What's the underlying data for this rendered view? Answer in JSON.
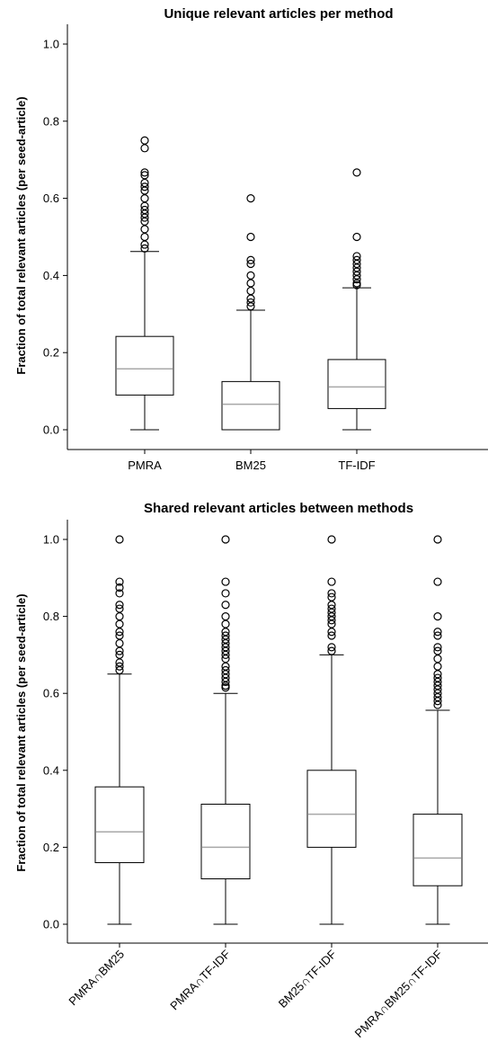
{
  "chart_data": [
    {
      "type": "box",
      "title": "Unique relevant articles per method",
      "ylabel": "Fraction of total relevant articles (per seed-article)",
      "xlabel": "",
      "ylim": [
        -0.05,
        1.05
      ],
      "yticks": [
        "0.0",
        "0.2",
        "0.4",
        "0.6",
        "0.8",
        "1.0"
      ],
      "grid": false,
      "categories": [
        "PMRA",
        "BM25",
        "TF-IDF"
      ],
      "boxes": [
        {
          "name": "PMRA",
          "whislo": 0.0,
          "q1": 0.09,
          "med": 0.158,
          "q3": 0.242,
          "whishi": 0.462,
          "fliers": [
            0.47,
            0.48,
            0.5,
            0.52,
            0.54,
            0.55,
            0.56,
            0.57,
            0.58,
            0.6,
            0.62,
            0.63,
            0.64,
            0.66,
            0.667,
            0.73,
            0.75
          ]
        },
        {
          "name": "BM25",
          "whislo": 0.0,
          "q1": 0.0,
          "med": 0.066,
          "q3": 0.125,
          "whishi": 0.31,
          "fliers": [
            0.32,
            0.33,
            0.34,
            0.36,
            0.38,
            0.4,
            0.43,
            0.44,
            0.5,
            0.6
          ]
        },
        {
          "name": "TF-IDF",
          "whislo": 0.0,
          "q1": 0.055,
          "med": 0.111,
          "q3": 0.182,
          "whishi": 0.368,
          "fliers": [
            0.375,
            0.38,
            0.39,
            0.4,
            0.41,
            0.42,
            0.43,
            0.44,
            0.45,
            0.5,
            0.667
          ]
        }
      ]
    },
    {
      "type": "box",
      "title": "Shared relevant articles between methods",
      "ylabel": "Fraction of total relevant articles (per seed-article)",
      "xlabel": "",
      "ylim": [
        -0.05,
        1.05
      ],
      "yticks": [
        "0.0",
        "0.2",
        "0.4",
        "0.6",
        "0.8",
        "1.0"
      ],
      "grid": false,
      "categories": [
        "PMRA∩BM25",
        "PMRA∩TF-IDF",
        "BM25∩TF-IDF",
        "PMRA∩BM25∩TF-IDF"
      ],
      "boxes": [
        {
          "name": "PMRA∩BM25",
          "whislo": 0.0,
          "q1": 0.16,
          "med": 0.24,
          "q3": 0.357,
          "whishi": 0.65,
          "fliers": [
            0.66,
            0.67,
            0.68,
            0.7,
            0.71,
            0.73,
            0.75,
            0.76,
            0.78,
            0.8,
            0.82,
            0.83,
            0.86,
            0.875,
            0.89,
            1.0
          ]
        },
        {
          "name": "PMRA∩TF-IDF",
          "whislo": 0.0,
          "q1": 0.118,
          "med": 0.2,
          "q3": 0.312,
          "whishi": 0.6,
          "fliers": [
            0.615,
            0.62,
            0.63,
            0.64,
            0.65,
            0.66,
            0.67,
            0.69,
            0.7,
            0.71,
            0.72,
            0.73,
            0.74,
            0.75,
            0.76,
            0.78,
            0.8,
            0.83,
            0.86,
            0.89,
            1.0
          ]
        },
        {
          "name": "BM25∩TF-IDF",
          "whislo": 0.0,
          "q1": 0.2,
          "med": 0.286,
          "q3": 0.4,
          "whishi": 0.7,
          "fliers": [
            0.71,
            0.72,
            0.75,
            0.76,
            0.78,
            0.79,
            0.8,
            0.81,
            0.82,
            0.83,
            0.85,
            0.86,
            0.89,
            1.0
          ]
        },
        {
          "name": "PMRA∩BM25∩TF-IDF",
          "whislo": 0.0,
          "q1": 0.1,
          "med": 0.172,
          "q3": 0.286,
          "whishi": 0.556,
          "fliers": [
            0.57,
            0.58,
            0.59,
            0.6,
            0.61,
            0.62,
            0.63,
            0.64,
            0.65,
            0.67,
            0.69,
            0.71,
            0.72,
            0.75,
            0.76,
            0.8,
            0.89,
            1.0
          ]
        }
      ]
    }
  ]
}
